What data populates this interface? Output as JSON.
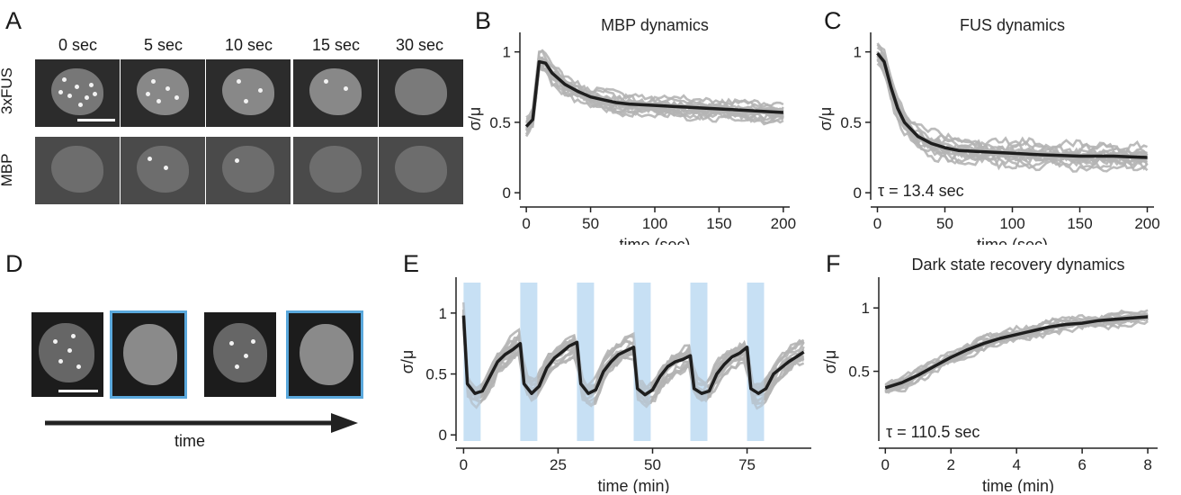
{
  "panels": {
    "A": {
      "letter": "A",
      "timepoints": [
        "0 sec",
        "5 sec",
        "10 sec",
        "15 sec",
        "30 sec"
      ],
      "rows": [
        "3xFUS",
        "MBP"
      ]
    },
    "B": {
      "letter": "B"
    },
    "C": {
      "letter": "C"
    },
    "D": {
      "letter": "D",
      "arrow_label": "time"
    },
    "E": {
      "letter": "E"
    },
    "F": {
      "letter": "F"
    }
  },
  "chart_data": [
    {
      "id": "B",
      "type": "line",
      "title": "MBP dynamics",
      "xlabel": "time (sec)",
      "ylabel": "σ/μ",
      "xlim": [
        -5,
        205
      ],
      "ylim": [
        -0.05,
        1.1
      ],
      "xticks": [
        0,
        50,
        100,
        150,
        200
      ],
      "yticks": [
        0,
        0.5,
        1
      ],
      "xtick_labels": [
        "0",
        "50",
        "100",
        "150",
        "200"
      ],
      "ytick_labels": [
        "0",
        "0.5",
        "1"
      ],
      "mean": {
        "x": [
          0,
          5,
          10,
          15,
          20,
          30,
          40,
          50,
          60,
          70,
          80,
          100,
          120,
          140,
          160,
          180,
          200
        ],
        "y": [
          0.47,
          0.52,
          0.93,
          0.92,
          0.85,
          0.77,
          0.72,
          0.68,
          0.66,
          0.64,
          0.63,
          0.62,
          0.61,
          0.6,
          0.59,
          0.58,
          0.57
        ]
      },
      "spread": 0.08
    },
    {
      "id": "C",
      "type": "line",
      "title": "FUS dynamics",
      "xlabel": "time (sec)",
      "ylabel": "σ/μ",
      "xlim": [
        -5,
        205
      ],
      "ylim": [
        -0.05,
        1.1
      ],
      "xticks": [
        0,
        50,
        100,
        150,
        200
      ],
      "yticks": [
        0,
        0.5,
        1
      ],
      "xtick_labels": [
        "0",
        "50",
        "100",
        "150",
        "200"
      ],
      "ytick_labels": [
        "0",
        "0.5",
        "1"
      ],
      "annotation": "τ = 13.4 sec",
      "mean": {
        "x": [
          0,
          5,
          10,
          15,
          20,
          30,
          40,
          50,
          60,
          80,
          100,
          120,
          150,
          175,
          200
        ],
        "y": [
          0.99,
          0.93,
          0.75,
          0.6,
          0.5,
          0.4,
          0.35,
          0.32,
          0.3,
          0.29,
          0.28,
          0.27,
          0.26,
          0.26,
          0.25
        ]
      },
      "spread": 0.1
    },
    {
      "id": "E",
      "type": "line",
      "title": "",
      "xlabel": "time (min)",
      "ylabel": "σ/μ",
      "xlim": [
        -2,
        92
      ],
      "ylim": [
        -0.05,
        1.25
      ],
      "xticks": [
        0,
        25,
        50,
        75
      ],
      "yticks": [
        0,
        0.5,
        1
      ],
      "xtick_labels": [
        "0",
        "25",
        "50",
        "75"
      ],
      "ytick_labels": [
        "0",
        "0.5",
        "1"
      ],
      "light_pulses": [
        [
          0,
          4.5
        ],
        [
          15,
          19.5
        ],
        [
          30,
          34.5
        ],
        [
          45,
          49.5
        ],
        [
          60,
          64.5
        ],
        [
          75,
          79.5
        ]
      ],
      "mean": {
        "x": [
          0,
          1,
          3,
          5,
          7,
          9,
          11,
          13,
          15,
          16,
          18,
          20,
          22,
          24,
          26,
          28,
          30,
          31,
          33,
          35,
          37,
          39,
          41,
          43,
          45,
          46,
          48,
          50,
          52,
          54,
          56,
          58,
          60,
          61,
          63,
          65,
          67,
          69,
          71,
          73,
          75,
          76,
          78,
          80,
          82,
          84,
          86,
          88,
          90
        ],
        "y": [
          0.98,
          0.42,
          0.34,
          0.36,
          0.48,
          0.6,
          0.66,
          0.7,
          0.75,
          0.42,
          0.34,
          0.4,
          0.55,
          0.63,
          0.68,
          0.73,
          0.76,
          0.42,
          0.34,
          0.37,
          0.52,
          0.6,
          0.66,
          0.69,
          0.72,
          0.38,
          0.33,
          0.37,
          0.48,
          0.56,
          0.6,
          0.62,
          0.65,
          0.38,
          0.34,
          0.36,
          0.5,
          0.58,
          0.64,
          0.67,
          0.72,
          0.38,
          0.34,
          0.38,
          0.5,
          0.55,
          0.6,
          0.64,
          0.68
        ]
      },
      "spread": 0.12
    },
    {
      "id": "F",
      "type": "line",
      "title": "Dark state recovery dynamics",
      "xlabel": "time (min)",
      "ylabel": "σ/μ",
      "xlim": [
        -0.2,
        8.3
      ],
      "ylim": [
        -0.05,
        1.2
      ],
      "xticks": [
        0,
        2,
        4,
        6,
        8
      ],
      "yticks": [
        0.5,
        1
      ],
      "xtick_labels": [
        "0",
        "2",
        "4",
        "6",
        "8"
      ],
      "ytick_labels": [
        "0.5",
        "1"
      ],
      "annotation": "τ = 110.5 sec",
      "mean": {
        "x": [
          0,
          0.5,
          1,
          1.5,
          2,
          2.5,
          3,
          3.5,
          4,
          4.5,
          5,
          5.5,
          6,
          6.5,
          7,
          7.5,
          8
        ],
        "y": [
          0.37,
          0.41,
          0.47,
          0.54,
          0.61,
          0.67,
          0.72,
          0.76,
          0.79,
          0.82,
          0.85,
          0.87,
          0.88,
          0.9,
          0.91,
          0.92,
          0.93
        ]
      },
      "spread": 0.07
    }
  ]
}
